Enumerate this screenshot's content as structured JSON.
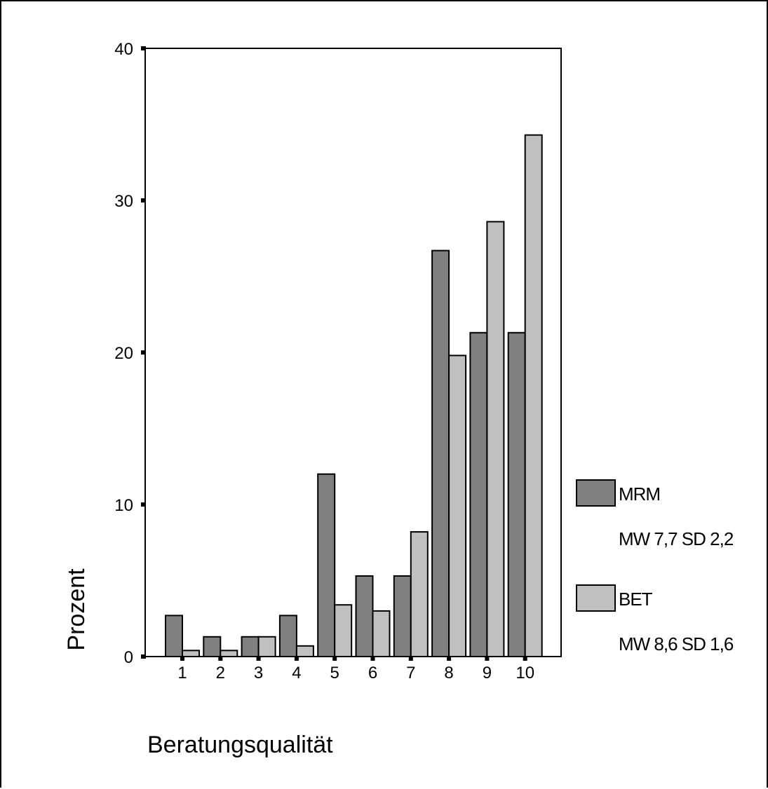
{
  "chart_data": {
    "type": "bar",
    "xlabel": "Beratungsqualität",
    "ylabel": "Prozent",
    "categories": [
      "1",
      "2",
      "3",
      "4",
      "5",
      "6",
      "7",
      "8",
      "9",
      "10"
    ],
    "ylim": [
      0,
      40
    ],
    "yticks": [
      0,
      10,
      20,
      30,
      40
    ],
    "grid": false,
    "legend_position": "right",
    "series": [
      {
        "name": "MRM",
        "stats": "MW 7,7 SD 2,2",
        "color": "#808080",
        "values": [
          2.7,
          1.3,
          1.3,
          2.7,
          12.0,
          5.3,
          5.3,
          26.7,
          21.3,
          21.3
        ]
      },
      {
        "name": "BET",
        "stats": "MW 8,6 SD 1,6",
        "color": "#c0c0c0",
        "values": [
          0.4,
          0.4,
          1.3,
          0.7,
          3.4,
          3.0,
          8.2,
          19.8,
          28.6,
          34.3
        ]
      }
    ]
  }
}
